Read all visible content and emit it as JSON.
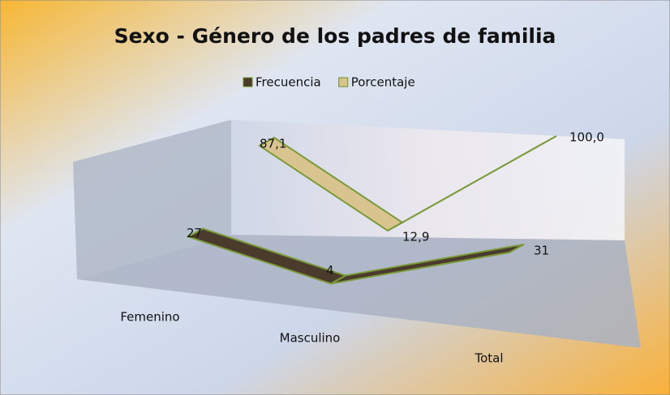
{
  "chart_data": {
    "type": "line3d",
    "title": "Sexo - Género de los padres de familia",
    "categories": [
      "Femenino",
      "Masculino",
      "Total"
    ],
    "series": [
      {
        "name": "Frecuencia",
        "color": "#4b3b2c",
        "values": [
          27,
          4,
          31
        ]
      },
      {
        "name": "Porcentaje",
        "color": "#d9c48f",
        "values": [
          87.1,
          12.9,
          100
        ],
        "value_labels": [
          "87,1",
          "12,9",
          "100,0"
        ]
      }
    ],
    "legend": "top"
  }
}
